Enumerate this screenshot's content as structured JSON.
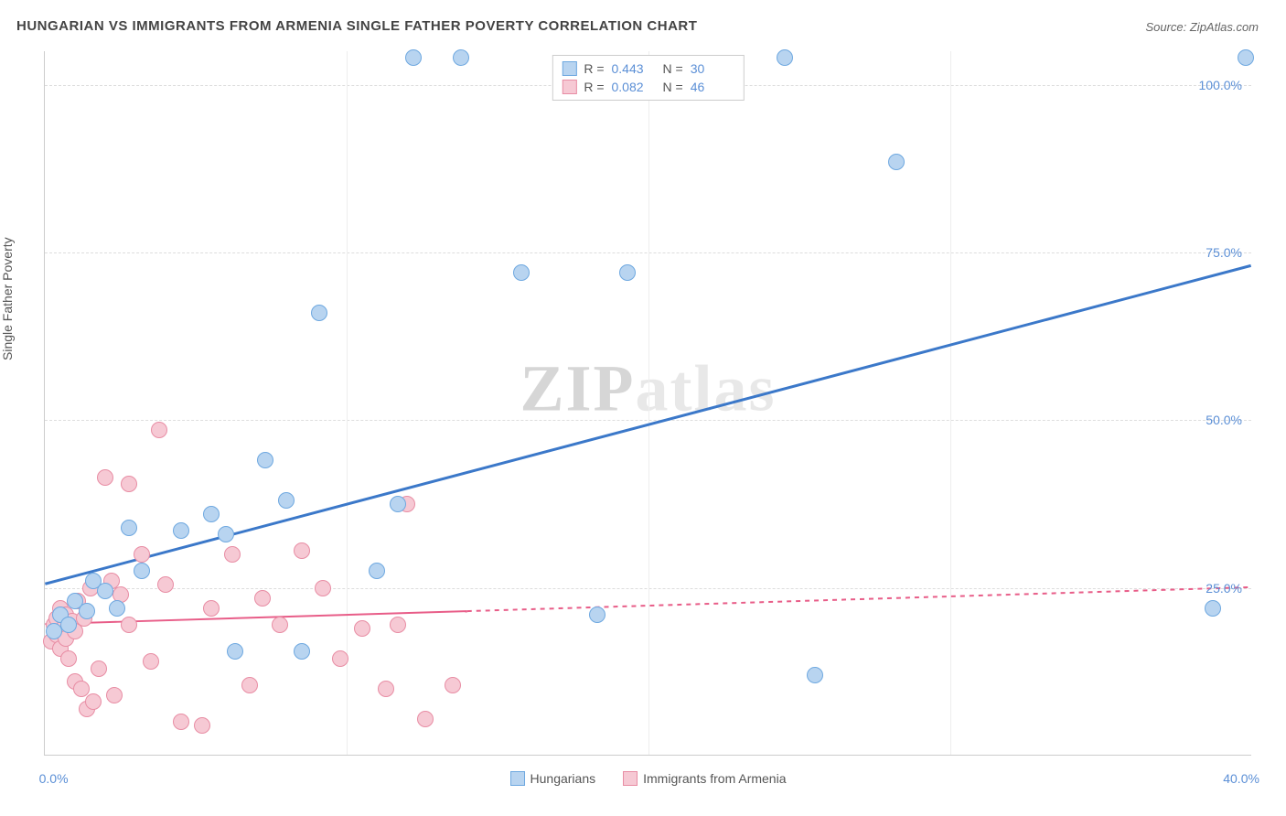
{
  "title": "HUNGARIAN VS IMMIGRANTS FROM ARMENIA SINGLE FATHER POVERTY CORRELATION CHART",
  "source": "Source: ZipAtlas.com",
  "y_axis_label": "Single Father Poverty",
  "watermark": {
    "zip": "ZIP",
    "atlas": "atlas"
  },
  "chart": {
    "type": "scatter",
    "background_color": "#ffffff",
    "grid_color": "#dddddd",
    "axis_color": "#cccccc",
    "xlim": [
      0,
      40
    ],
    "ylim": [
      0,
      105
    ],
    "x_ticks": [
      0,
      10,
      20,
      30,
      40
    ],
    "x_tick_labels": [
      "0.0%",
      "",
      "",
      "",
      "40.0%"
    ],
    "y_ticks": [
      25,
      50,
      75,
      100
    ],
    "y_tick_labels": [
      "25.0%",
      "50.0%",
      "75.0%",
      "100.0%"
    ],
    "tick_label_color": "#5b8fd6",
    "tick_fontsize": 14,
    "point_radius": 9,
    "point_border_width": 1.5,
    "series": [
      {
        "name": "Hungarians",
        "fill_color": "#b8d4f0",
        "border_color": "#6ea8e0",
        "R": "0.443",
        "N": "30",
        "trend": {
          "x1": 0,
          "y1": 25.5,
          "x2": 40,
          "y2": 73,
          "stroke": "#3b78c9",
          "width": 3,
          "dash": null,
          "dash_from_x": null
        },
        "points": [
          [
            0.3,
            18.5
          ],
          [
            0.5,
            21
          ],
          [
            0.8,
            19.5
          ],
          [
            1.0,
            23
          ],
          [
            1.4,
            21.5
          ],
          [
            1.6,
            26
          ],
          [
            2.0,
            24.5
          ],
          [
            2.4,
            22
          ],
          [
            2.8,
            34
          ],
          [
            3.2,
            27.5
          ],
          [
            4.5,
            33.5
          ],
          [
            5.5,
            36
          ],
          [
            6.0,
            33
          ],
          [
            6.3,
            15.5
          ],
          [
            7.3,
            44
          ],
          [
            8.0,
            38
          ],
          [
            8.5,
            15.5
          ],
          [
            9.1,
            66
          ],
          [
            11.0,
            27.5
          ],
          [
            11.7,
            37.5
          ],
          [
            12.2,
            104
          ],
          [
            13.8,
            104
          ],
          [
            15.8,
            72
          ],
          [
            18.3,
            21
          ],
          [
            19.3,
            72
          ],
          [
            24.5,
            104
          ],
          [
            25.5,
            12
          ],
          [
            28.2,
            88.5
          ],
          [
            38.7,
            22
          ],
          [
            39.8,
            104
          ]
        ]
      },
      {
        "name": "Immigrants from Armenia",
        "fill_color": "#f6c9d4",
        "border_color": "#e88da4",
        "R": "0.082",
        "N": "46",
        "trend": {
          "x1": 0,
          "y1": 19.5,
          "x2": 40,
          "y2": 25,
          "stroke": "#e85d88",
          "width": 2,
          "dash": "5,5",
          "dash_from_x": 14
        },
        "points": [
          [
            0.2,
            17
          ],
          [
            0.3,
            19.5
          ],
          [
            0.4,
            18
          ],
          [
            0.4,
            20.5
          ],
          [
            0.5,
            16
          ],
          [
            0.5,
            22
          ],
          [
            0.6,
            19
          ],
          [
            0.7,
            17.5
          ],
          [
            0.7,
            21
          ],
          [
            0.8,
            14.5
          ],
          [
            0.9,
            20
          ],
          [
            1.0,
            11
          ],
          [
            1.0,
            18.5
          ],
          [
            1.1,
            23
          ],
          [
            1.2,
            10
          ],
          [
            1.3,
            20.5
          ],
          [
            1.4,
            7
          ],
          [
            1.5,
            25
          ],
          [
            1.6,
            8
          ],
          [
            1.8,
            13
          ],
          [
            2.0,
            41.5
          ],
          [
            2.2,
            26
          ],
          [
            2.3,
            9
          ],
          [
            2.5,
            24
          ],
          [
            2.8,
            19.5
          ],
          [
            2.8,
            40.5
          ],
          [
            3.2,
            30
          ],
          [
            3.5,
            14
          ],
          [
            3.8,
            48.5
          ],
          [
            4.0,
            25.5
          ],
          [
            4.5,
            5
          ],
          [
            5.2,
            4.5
          ],
          [
            5.5,
            22
          ],
          [
            6.2,
            30
          ],
          [
            6.8,
            10.5
          ],
          [
            7.2,
            23.5
          ],
          [
            7.8,
            19.5
          ],
          [
            8.5,
            30.5
          ],
          [
            9.2,
            25
          ],
          [
            9.8,
            14.5
          ],
          [
            10.5,
            19
          ],
          [
            11.3,
            10
          ],
          [
            11.7,
            19.5
          ],
          [
            12.0,
            37.5
          ],
          [
            12.6,
            5.5
          ],
          [
            13.5,
            10.5
          ]
        ]
      }
    ],
    "stats_box": {
      "R_label": "R =",
      "N_label": "N ="
    },
    "legend": {
      "items": [
        "Hungarians",
        "Immigrants from Armenia"
      ]
    }
  }
}
